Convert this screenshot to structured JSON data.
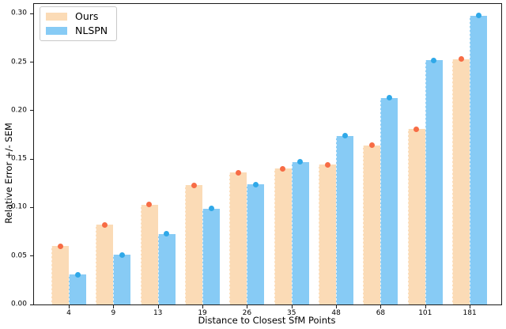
{
  "chart_data": {
    "type": "bar",
    "title": "",
    "xlabel": "Distance to Closest SfM Points",
    "ylabel": "Relative Error +/- SEM",
    "categories": [
      "4",
      "9",
      "13",
      "19",
      "26",
      "35",
      "48",
      "68",
      "101",
      "181"
    ],
    "series": [
      {
        "name": "Ours",
        "bar_color": "#FBDBB6",
        "point_color": "#F76C45",
        "values": [
          0.06,
          0.082,
          0.103,
          0.123,
          0.136,
          0.14,
          0.144,
          0.164,
          0.181,
          0.253
        ]
      },
      {
        "name": "NLSPN",
        "bar_color": "#87CBF5",
        "point_color": "#2FA8E8",
        "values": [
          0.031,
          0.051,
          0.073,
          0.099,
          0.124,
          0.147,
          0.174,
          0.213,
          0.252,
          0.298
        ]
      }
    ],
    "yticks": [
      0.0,
      0.05,
      0.1,
      0.15,
      0.2,
      0.25,
      0.3
    ],
    "ytick_labels": [
      "0.00",
      "0.05",
      "0.10",
      "0.15",
      "0.20",
      "0.25",
      "0.30"
    ],
    "ylim": [
      0,
      0.31
    ],
    "grid": false,
    "legend_position": "upper left",
    "marker": "point at bar top (mean with SEM errorbar)",
    "spine_color": "#1a1a1a"
  }
}
